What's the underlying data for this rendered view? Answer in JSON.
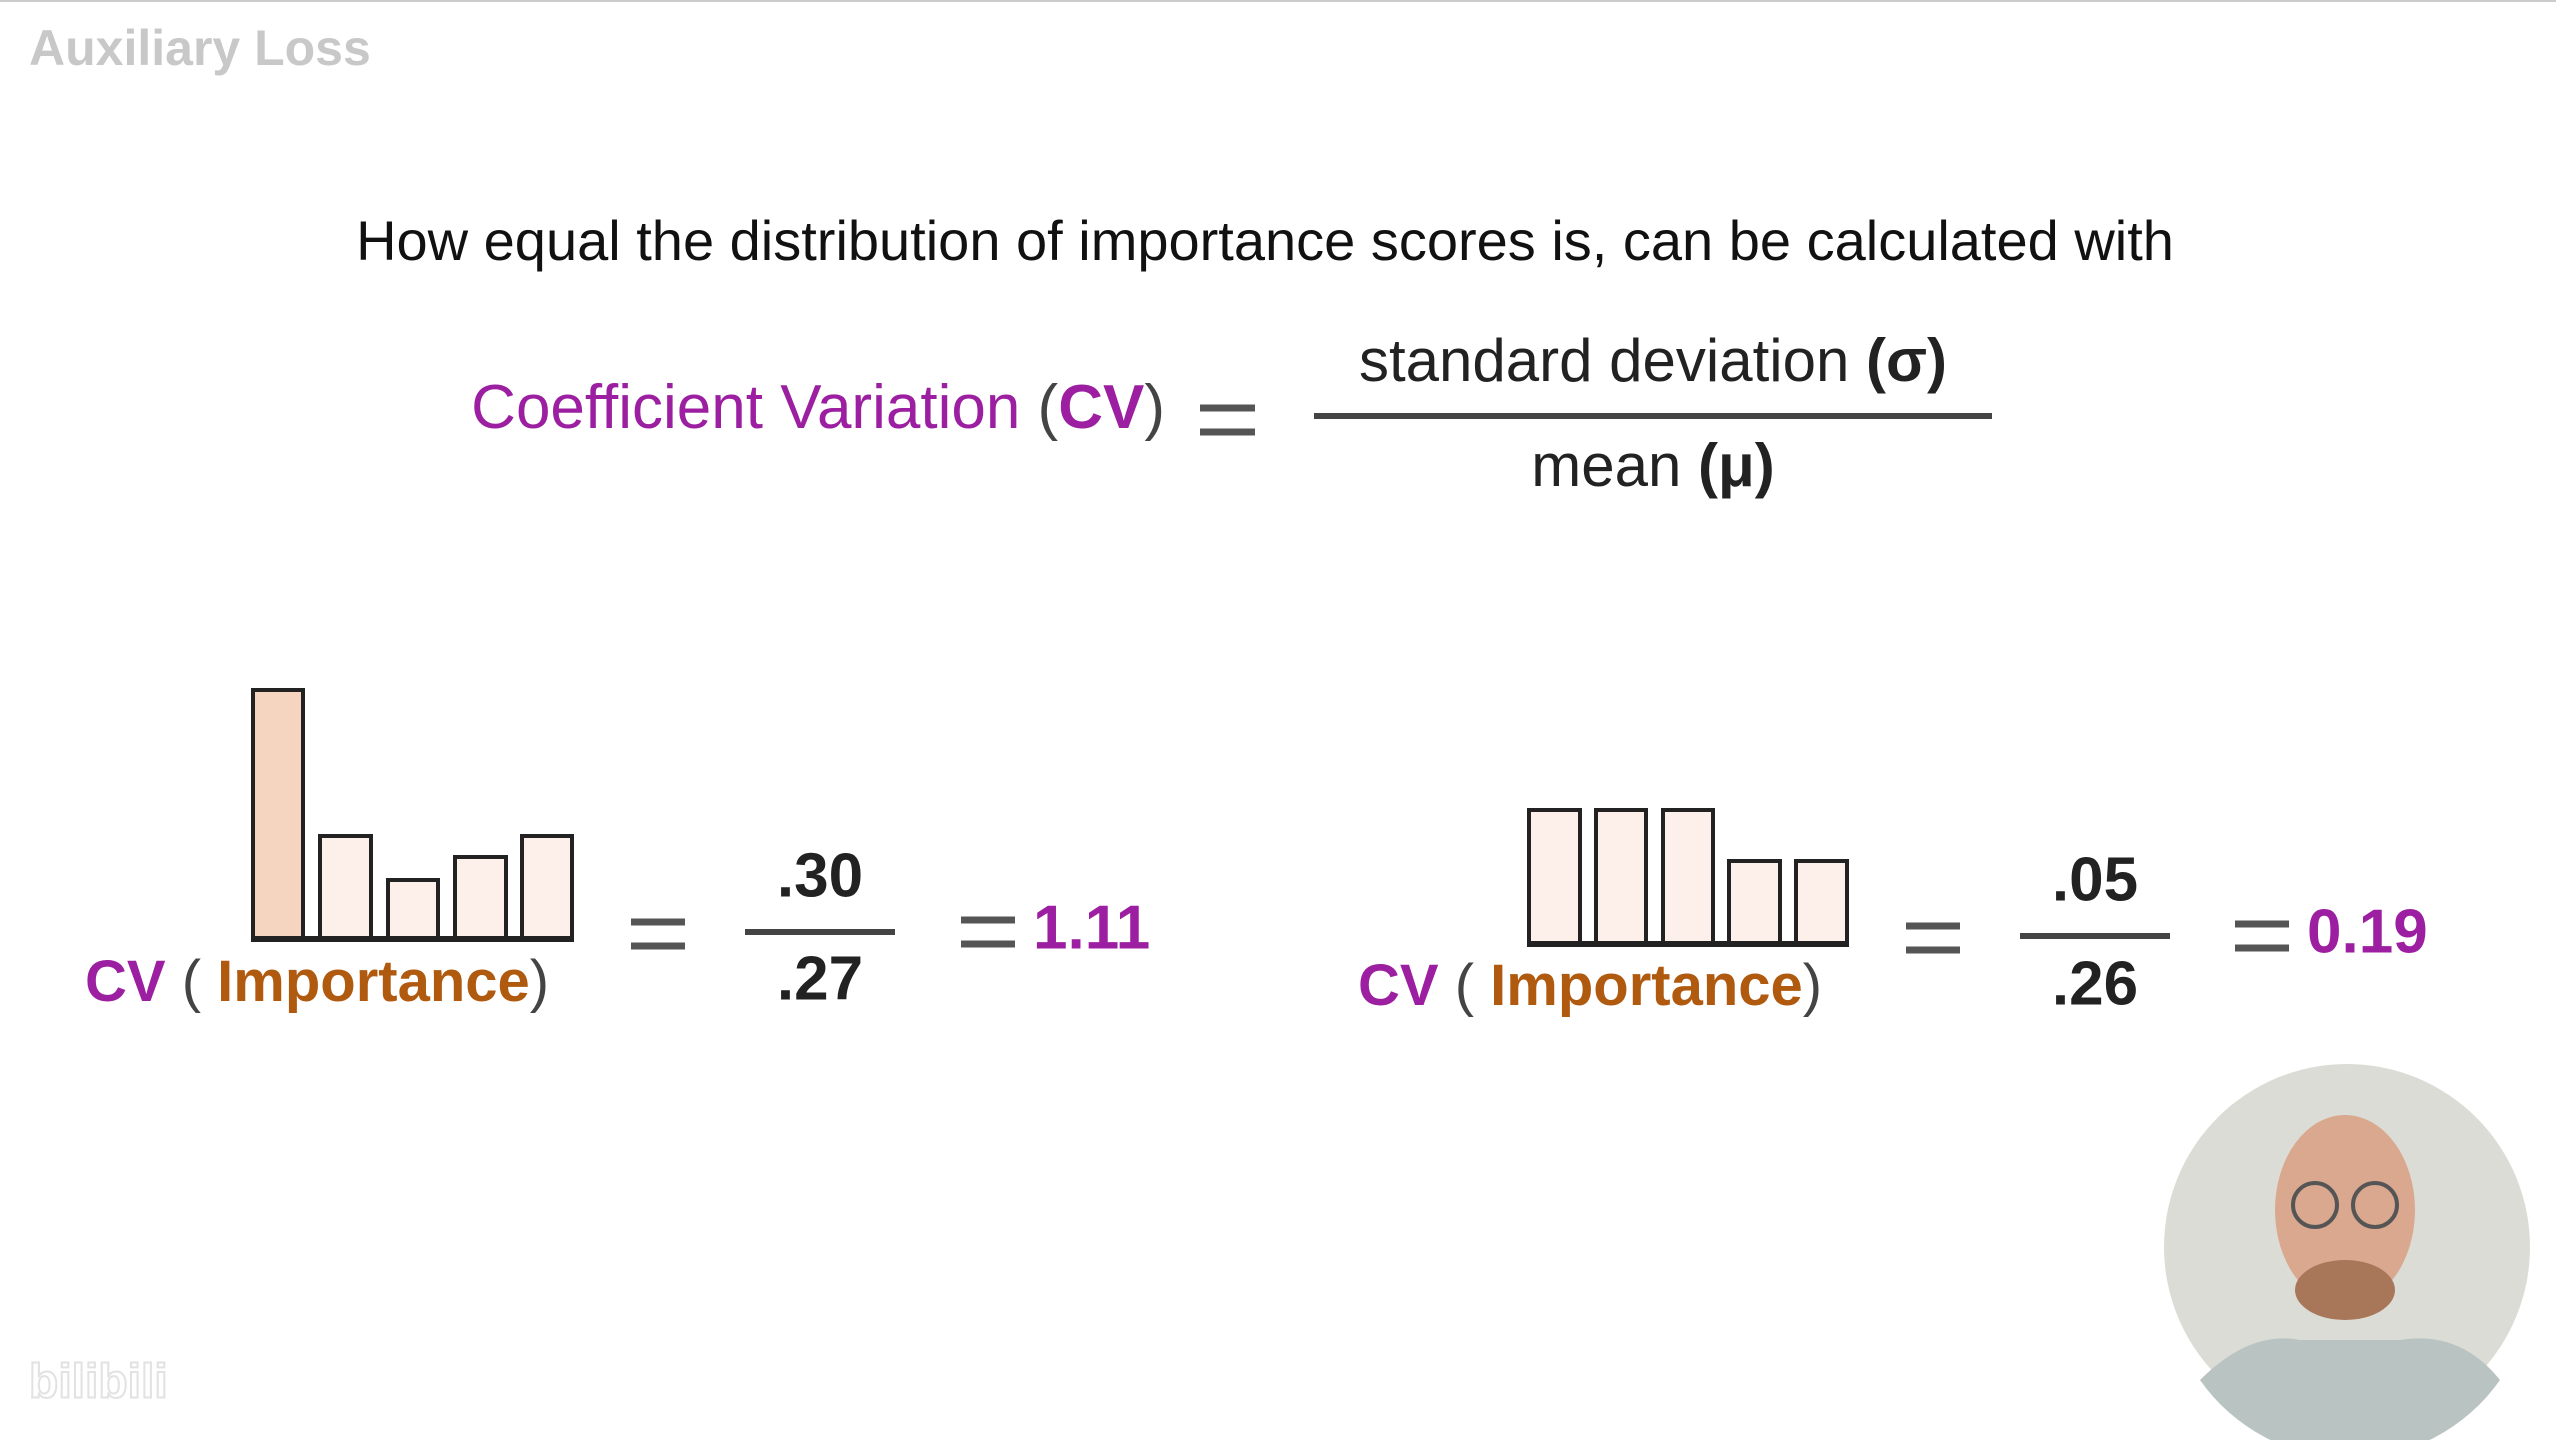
{
  "header": {
    "title": "Auxiliary Loss"
  },
  "intro": "How equal the distribution of importance scores is, can be calculated with",
  "formula": {
    "lhs": "Coefficient Variation",
    "lhs_open": "(",
    "lhs_abbr": "CV",
    "lhs_close": ")",
    "numerator": "standard deviation",
    "numerator_symbol": "(σ)",
    "denominator": "mean",
    "denominator_symbol": "(μ)"
  },
  "examples": [
    {
      "label": "CV",
      "open": "(",
      "argument": "Importance",
      "close": ")",
      "numerator": ".30",
      "denominator": ".27",
      "result": "1.11"
    },
    {
      "label": "CV",
      "open": "(",
      "argument": "Importance",
      "close": ")",
      "numerator": ".05",
      "denominator": ".26",
      "result": "0.19"
    }
  ],
  "watermark": "bilibili"
}
